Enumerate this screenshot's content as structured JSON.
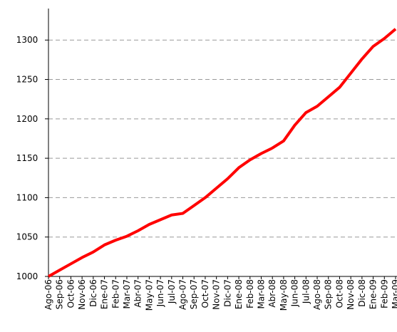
{
  "chart_data": {
    "type": "line",
    "categories": [
      "Ago-06",
      "Sep-06",
      "Oct-06",
      "Nov-06",
      "Dic-06",
      "Ene-07",
      "Feb-07",
      "Mar-07",
      "Abr-07",
      "May-07",
      "Jun-07",
      "Jul-07",
      "Ago-07",
      "Sep-07",
      "Oct-07",
      "Nov-07",
      "Dic-07",
      "Ene-08",
      "Feb-08",
      "Mar-08",
      "Abr-08",
      "May-08",
      "Jun-08",
      "Jul-08",
      "Ago-08",
      "Sep-08",
      "Oct-08",
      "Nov-08",
      "Dic-08",
      "Ene-09",
      "Feb-09",
      "Mar-09"
    ],
    "series": [
      {
        "color": "#ff0000",
        "values": [
          1000,
          1008,
          1016,
          1024,
          1031,
          1040,
          1046,
          1051,
          1058,
          1066,
          1072,
          1078,
          1080,
          1090,
          1100,
          1112,
          1124,
          1138,
          1148,
          1156,
          1163,
          1172,
          1192,
          1208,
          1216,
          1228,
          1240,
          1258,
          1276,
          1292,
          1302,
          1314
        ]
      }
    ],
    "ylim": [
      1000,
      1340
    ],
    "yticks": [
      1000,
      1050,
      1100,
      1150,
      1200,
      1250,
      1300
    ],
    "grid": true
  }
}
